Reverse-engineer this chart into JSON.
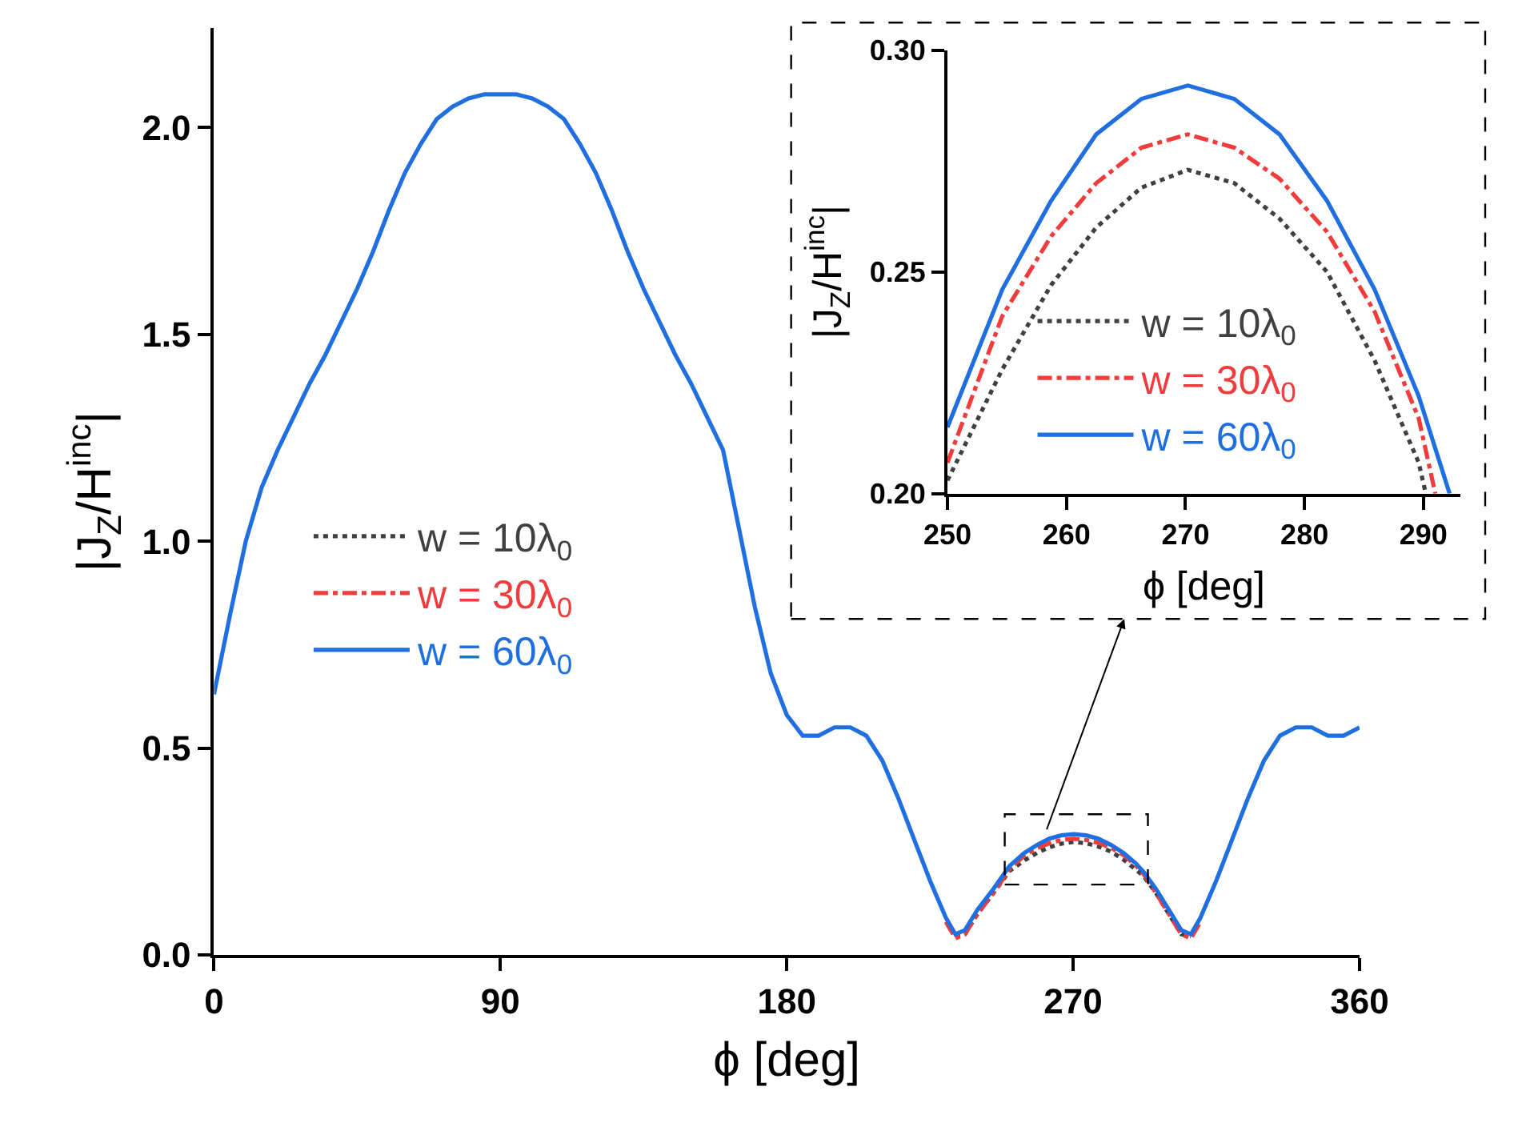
{
  "chart_data": [
    {
      "type": "line",
      "xlabel": "ϕ [deg]",
      "ylabel": "|J$_{Z}$/H$^{inc}$|",
      "x": [
        0,
        5,
        10,
        15,
        20,
        25,
        30,
        35,
        40,
        45,
        50,
        55,
        60,
        65,
        70,
        75,
        80,
        85,
        90,
        95,
        100,
        105,
        110,
        115,
        120,
        125,
        130,
        135,
        140,
        145,
        150,
        155,
        160,
        165,
        170,
        175,
        180,
        185,
        190,
        195,
        200,
        205,
        210,
        215,
        220,
        225,
        230,
        233,
        236,
        240,
        245,
        250,
        254.6,
        258.7,
        262.5,
        266.3,
        270.2,
        274.1,
        277.9,
        281.9,
        285.9,
        289.6,
        292.2,
        296,
        300,
        304,
        307,
        310,
        315,
        320,
        325,
        330,
        335,
        340,
        345,
        350,
        355,
        360
      ],
      "series": [
        {
          "name": "w = 10λ$_{0}$",
          "color": "#404040",
          "line_style": "dotted",
          "values": [
            null,
            null,
            null,
            null,
            null,
            null,
            null,
            null,
            null,
            null,
            null,
            null,
            null,
            null,
            null,
            null,
            null,
            null,
            null,
            null,
            null,
            null,
            null,
            null,
            null,
            null,
            null,
            null,
            null,
            null,
            null,
            null,
            null,
            null,
            null,
            null,
            null,
            null,
            null,
            null,
            null,
            null,
            null,
            null,
            null,
            null,
            null,
            0.045,
            0.05,
            0.1,
            0.15,
            0.203,
            0.228,
            0.247,
            0.26,
            0.269,
            0.273,
            0.27,
            0.262,
            0.25,
            0.23,
            0.207,
            0.19,
            0.15,
            0.1,
            0.05,
            0.045,
            null,
            null,
            null,
            null,
            null,
            null,
            null,
            null,
            null,
            null,
            null
          ]
        },
        {
          "name": "w = 30λ$_{0}$",
          "color": "#f03c3c",
          "line_style": "dashdot",
          "values": [
            null,
            null,
            null,
            null,
            null,
            null,
            null,
            null,
            null,
            null,
            null,
            null,
            null,
            null,
            null,
            null,
            null,
            null,
            null,
            null,
            null,
            null,
            null,
            null,
            null,
            null,
            null,
            null,
            null,
            null,
            null,
            null,
            null,
            null,
            null,
            null,
            null,
            null,
            null,
            null,
            null,
            null,
            null,
            null,
            null,
            null,
            0.08,
            0.04,
            0.05,
            0.1,
            0.15,
            0.207,
            0.24,
            0.258,
            0.27,
            0.278,
            0.281,
            0.278,
            0.271,
            0.259,
            0.241,
            0.217,
            0.195,
            0.15,
            0.1,
            0.05,
            0.04,
            0.08,
            null,
            null,
            null,
            null,
            null,
            null,
            null,
            null,
            null,
            null
          ]
        },
        {
          "name": "w = 60λ$_{0}$",
          "color": "#1f6fe0",
          "line_style": "solid",
          "values": [
            0.63,
            0.82,
            1.0,
            1.13,
            1.22,
            1.3,
            1.38,
            1.45,
            1.53,
            1.61,
            1.7,
            1.8,
            1.89,
            1.96,
            2.02,
            2.05,
            2.07,
            2.08,
            2.08,
            2.08,
            2.07,
            2.05,
            2.02,
            1.96,
            1.89,
            1.8,
            1.7,
            1.61,
            1.53,
            1.45,
            1.38,
            1.3,
            1.22,
            1.03,
            0.84,
            0.68,
            0.58,
            0.53,
            0.53,
            0.55,
            0.55,
            0.53,
            0.47,
            0.38,
            0.28,
            0.18,
            0.09,
            0.05,
            0.06,
            0.11,
            0.16,
            0.215,
            0.246,
            0.266,
            0.281,
            0.289,
            0.292,
            0.289,
            0.281,
            0.266,
            0.246,
            0.222,
            0.2,
            0.16,
            0.11,
            0.06,
            0.05,
            0.09,
            0.18,
            0.28,
            0.38,
            0.47,
            0.53,
            0.55,
            0.55,
            0.53,
            0.53,
            0.55
          ]
        }
      ],
      "xlim": [
        0,
        360
      ],
      "xticks": [
        0,
        90,
        180,
        270,
        360
      ],
      "ylim": [
        0,
        2.24
      ],
      "yticks": [
        {
          "value": 0,
          "label": "0.0"
        },
        0.5,
        {
          "value": 1,
          "label": "1.0"
        },
        1.5,
        {
          "value": 2,
          "label": "2.0"
        }
      ],
      "legend": "left"
    },
    {
      "type": "line",
      "xlabel": "ϕ [deg]",
      "ylabel": "|J$_{Z}$/H$^{inc}$|",
      "series": [
        {
          "name": "w = 10λ$_{0}$",
          "color": "#404040",
          "line_style": "dotted",
          "x": [
            250,
            254.6,
            258.7,
            262.5,
            266.3,
            270.2,
            274.1,
            277.9,
            281.9,
            285.9,
            289.6,
            290.2
          ],
          "values": [
            0.203,
            0.228,
            0.247,
            0.26,
            0.269,
            0.273,
            0.27,
            0.262,
            0.25,
            0.23,
            0.207,
            0.2
          ]
        },
        {
          "name": "w = 30λ$_{0}$",
          "color": "#f03c3c",
          "line_style": "dashdot",
          "x": [
            250,
            254.6,
            258.7,
            262.5,
            266.3,
            270.2,
            274.1,
            277.9,
            281.9,
            285.9,
            289.6,
            291.0
          ],
          "values": [
            0.207,
            0.24,
            0.258,
            0.27,
            0.278,
            0.281,
            0.278,
            0.271,
            0.259,
            0.241,
            0.217,
            0.2
          ]
        },
        {
          "name": "w = 60λ$_{0}$",
          "color": "#1f6fe0",
          "line_style": "solid",
          "x": [
            250,
            254.6,
            258.7,
            262.5,
            266.3,
            270.2,
            274.1,
            277.9,
            281.9,
            285.9,
            289.6,
            292.2
          ],
          "values": [
            0.215,
            0.246,
            0.266,
            0.281,
            0.289,
            0.292,
            0.289,
            0.281,
            0.266,
            0.246,
            0.222,
            0.2
          ]
        }
      ],
      "xlim": [
        250,
        293.1
      ],
      "xticks": [
        250,
        260,
        270,
        280,
        290
      ],
      "ylim": [
        0.2,
        0.3
      ],
      "yticks": [
        {
          "value": 0.2,
          "label": "0.20"
        },
        0.25,
        {
          "value": 0.3,
          "label": "0.30"
        }
      ],
      "legend": "bottom"
    }
  ]
}
